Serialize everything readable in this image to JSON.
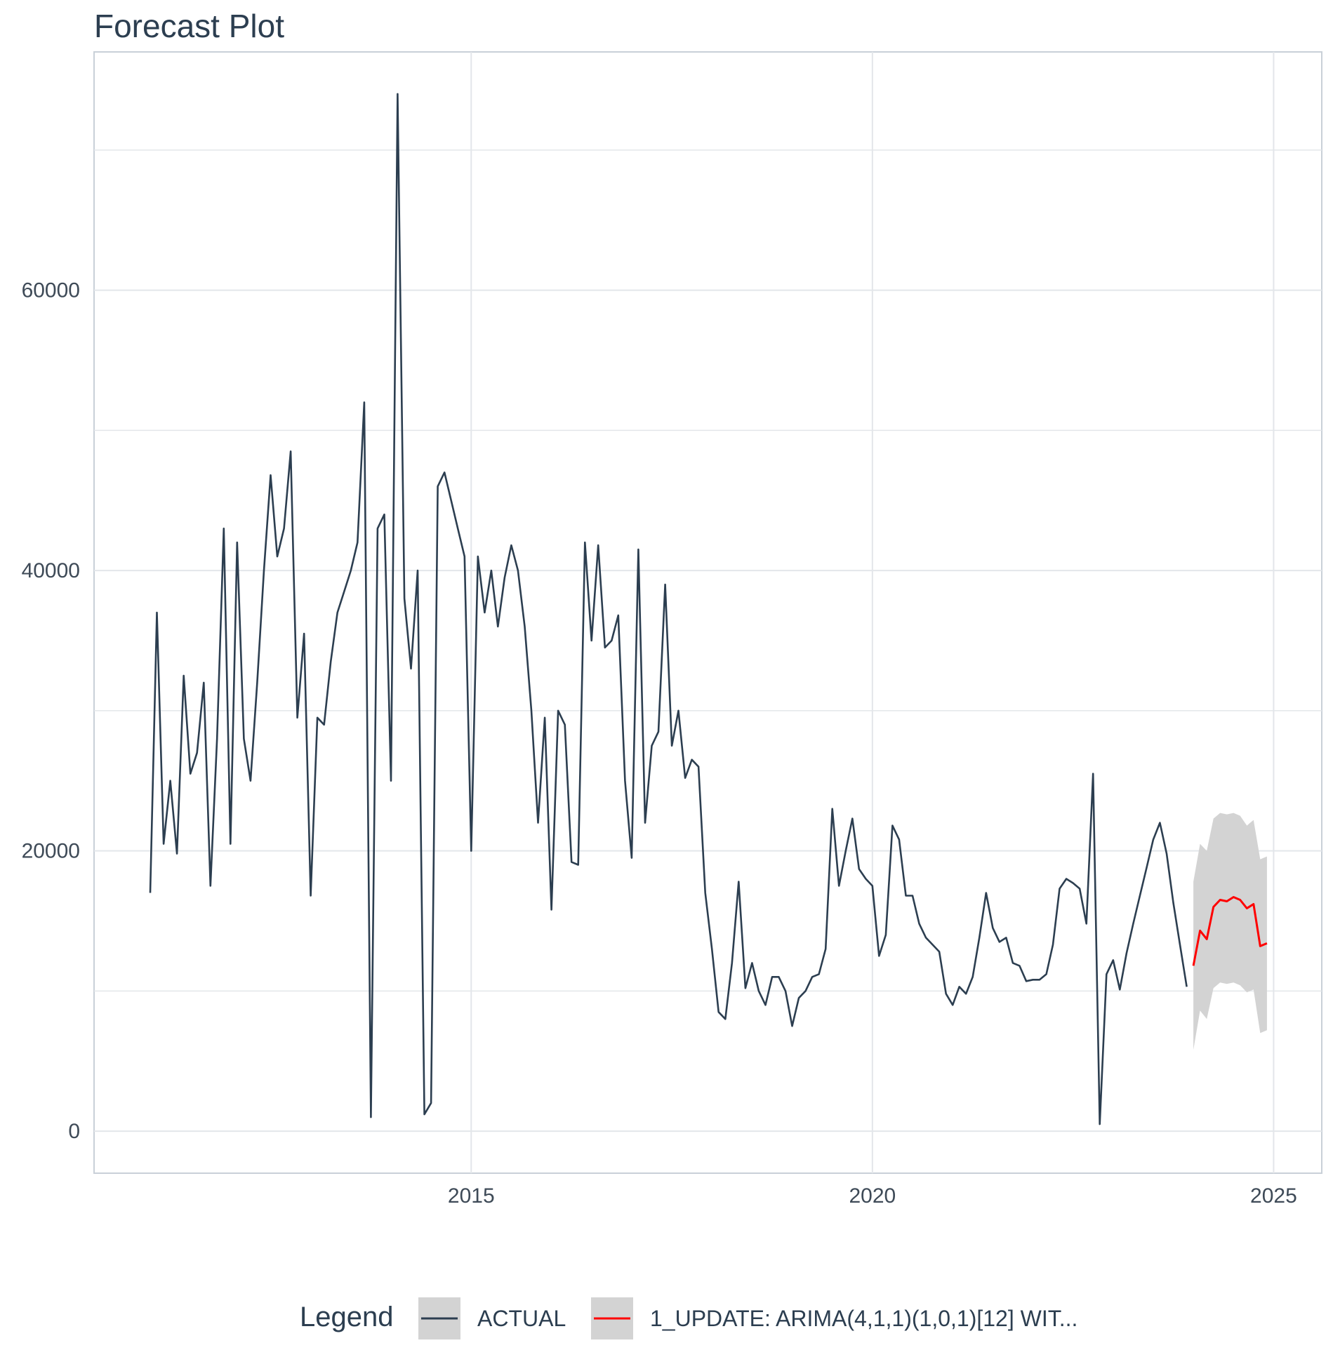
{
  "chart_data": {
    "type": "line",
    "title": "Forecast Plot",
    "xlabel": "",
    "ylabel": "",
    "x_ticks": [
      2015,
      2020,
      2025
    ],
    "y_ticks": [
      0,
      20000,
      40000,
      60000
    ],
    "y_tick_labels": [
      "0",
      "20000",
      "40000",
      "60000"
    ],
    "x_tick_labels": [
      "2015",
      "2020",
      "2025"
    ],
    "xlim": [
      2010.3,
      2025.6
    ],
    "ylim": [
      -3000,
      77000
    ],
    "grid": true,
    "legend_position": "bottom",
    "legend": {
      "title": "Legend",
      "entries": [
        {
          "label": "ACTUAL",
          "color": "#2c3e50"
        },
        {
          "label": "1_UPDATE: ARIMA(4,1,1)(1,0,1)[12] WIT...",
          "color": "#ff0000"
        }
      ]
    },
    "colors": {
      "actual": "#2c3e50",
      "forecast": "#ff0000",
      "interval": "#d3d3d3",
      "grid": "#e3e6ea",
      "panel_border": "#c9d0d8"
    },
    "series": [
      {
        "name": "ACTUAL",
        "points": [
          [
            2011.0,
            17000
          ],
          [
            2011.083,
            37000
          ],
          [
            2011.167,
            20500
          ],
          [
            2011.25,
            25000
          ],
          [
            2011.333,
            19800
          ],
          [
            2011.417,
            32500
          ],
          [
            2011.5,
            25500
          ],
          [
            2011.583,
            27000
          ],
          [
            2011.667,
            32000
          ],
          [
            2011.75,
            17500
          ],
          [
            2011.833,
            28000
          ],
          [
            2011.917,
            43000
          ],
          [
            2012.0,
            20500
          ],
          [
            2012.083,
            42000
          ],
          [
            2012.167,
            28000
          ],
          [
            2012.25,
            25000
          ],
          [
            2012.333,
            32000
          ],
          [
            2012.417,
            40000
          ],
          [
            2012.5,
            46800
          ],
          [
            2012.583,
            41000
          ],
          [
            2012.667,
            43000
          ],
          [
            2012.75,
            48500
          ],
          [
            2012.833,
            29500
          ],
          [
            2012.917,
            35500
          ],
          [
            2013.0,
            16800
          ],
          [
            2013.083,
            29500
          ],
          [
            2013.167,
            29000
          ],
          [
            2013.25,
            33500
          ],
          [
            2013.333,
            37000
          ],
          [
            2013.417,
            38500
          ],
          [
            2013.5,
            40000
          ],
          [
            2013.583,
            42000
          ],
          [
            2013.667,
            52000
          ],
          [
            2013.75,
            1000
          ],
          [
            2013.833,
            43000
          ],
          [
            2013.917,
            44000
          ],
          [
            2014.0,
            25000
          ],
          [
            2014.083,
            74000
          ],
          [
            2014.167,
            38000
          ],
          [
            2014.25,
            33000
          ],
          [
            2014.333,
            40000
          ],
          [
            2014.417,
            1200
          ],
          [
            2014.5,
            2000
          ],
          [
            2014.583,
            46000
          ],
          [
            2014.667,
            47000
          ],
          [
            2014.75,
            45000
          ],
          [
            2014.833,
            43000
          ],
          [
            2014.917,
            41000
          ],
          [
            2015.0,
            20000
          ],
          [
            2015.083,
            41000
          ],
          [
            2015.167,
            37000
          ],
          [
            2015.25,
            40000
          ],
          [
            2015.333,
            36000
          ],
          [
            2015.417,
            39500
          ],
          [
            2015.5,
            41800
          ],
          [
            2015.583,
            40000
          ],
          [
            2015.667,
            36000
          ],
          [
            2015.75,
            30000
          ],
          [
            2015.833,
            22000
          ],
          [
            2015.917,
            29500
          ],
          [
            2016.0,
            15800
          ],
          [
            2016.083,
            30000
          ],
          [
            2016.167,
            29000
          ],
          [
            2016.25,
            19200
          ],
          [
            2016.333,
            19000
          ],
          [
            2016.417,
            42000
          ],
          [
            2016.5,
            35000
          ],
          [
            2016.583,
            41800
          ],
          [
            2016.667,
            34500
          ],
          [
            2016.75,
            35000
          ],
          [
            2016.833,
            36800
          ],
          [
            2016.917,
            25000
          ],
          [
            2017.0,
            19500
          ],
          [
            2017.083,
            41500
          ],
          [
            2017.167,
            22000
          ],
          [
            2017.25,
            27500
          ],
          [
            2017.333,
            28500
          ],
          [
            2017.417,
            39000
          ],
          [
            2017.5,
            27500
          ],
          [
            2017.583,
            30000
          ],
          [
            2017.667,
            25200
          ],
          [
            2017.75,
            26500
          ],
          [
            2017.833,
            26000
          ],
          [
            2017.917,
            17000
          ],
          [
            2018.0,
            13000
          ],
          [
            2018.083,
            8500
          ],
          [
            2018.167,
            8000
          ],
          [
            2018.25,
            12000
          ],
          [
            2018.333,
            17800
          ],
          [
            2018.417,
            10200
          ],
          [
            2018.5,
            12000
          ],
          [
            2018.583,
            10000
          ],
          [
            2018.667,
            9000
          ],
          [
            2018.75,
            11000
          ],
          [
            2018.833,
            11000
          ],
          [
            2018.917,
            10000
          ],
          [
            2019.0,
            7500
          ],
          [
            2019.083,
            9500
          ],
          [
            2019.167,
            10000
          ],
          [
            2019.25,
            11000
          ],
          [
            2019.333,
            11200
          ],
          [
            2019.417,
            13000
          ],
          [
            2019.5,
            23000
          ],
          [
            2019.583,
            17500
          ],
          [
            2019.667,
            20000
          ],
          [
            2019.75,
            22300
          ],
          [
            2019.833,
            18700
          ],
          [
            2019.917,
            18000
          ],
          [
            2020.0,
            17500
          ],
          [
            2020.083,
            12500
          ],
          [
            2020.167,
            14000
          ],
          [
            2020.25,
            21800
          ],
          [
            2020.333,
            20800
          ],
          [
            2020.417,
            16800
          ],
          [
            2020.5,
            16800
          ],
          [
            2020.583,
            14800
          ],
          [
            2020.667,
            13800
          ],
          [
            2020.75,
            13300
          ],
          [
            2020.833,
            12800
          ],
          [
            2020.917,
            9800
          ],
          [
            2021.0,
            9000
          ],
          [
            2021.083,
            10300
          ],
          [
            2021.167,
            9800
          ],
          [
            2021.25,
            11000
          ],
          [
            2021.333,
            13800
          ],
          [
            2021.417,
            17000
          ],
          [
            2021.5,
            14500
          ],
          [
            2021.583,
            13500
          ],
          [
            2021.667,
            13800
          ],
          [
            2021.75,
            12000
          ],
          [
            2021.833,
            11800
          ],
          [
            2021.917,
            10700
          ],
          [
            2022.0,
            10800
          ],
          [
            2022.083,
            10800
          ],
          [
            2022.167,
            11200
          ],
          [
            2022.25,
            13300
          ],
          [
            2022.333,
            17300
          ],
          [
            2022.417,
            18000
          ],
          [
            2022.5,
            17700
          ],
          [
            2022.583,
            17300
          ],
          [
            2022.667,
            14800
          ],
          [
            2022.75,
            25500
          ],
          [
            2022.833,
            500
          ],
          [
            2022.917,
            11200
          ],
          [
            2023.0,
            12200
          ],
          [
            2023.083,
            10100
          ],
          [
            2023.167,
            12700
          ],
          [
            2023.25,
            14800
          ],
          [
            2023.333,
            16800
          ],
          [
            2023.417,
            18800
          ],
          [
            2023.5,
            20800
          ],
          [
            2023.583,
            22000
          ],
          [
            2023.667,
            19800
          ],
          [
            2023.75,
            16300
          ],
          [
            2023.833,
            13300
          ],
          [
            2023.917,
            10300
          ]
        ]
      },
      {
        "name": "1_UPDATE: ARIMA(4,1,1)(1,0,1)[12] WIT...",
        "points": [
          [
            2024.0,
            11800
          ],
          [
            2024.083,
            14300
          ],
          [
            2024.167,
            13700
          ],
          [
            2024.25,
            16000
          ],
          [
            2024.333,
            16500
          ],
          [
            2024.417,
            16400
          ],
          [
            2024.5,
            16700
          ],
          [
            2024.583,
            16500
          ],
          [
            2024.667,
            15900
          ],
          [
            2024.75,
            16200
          ],
          [
            2024.833,
            13200
          ],
          [
            2024.917,
            13400
          ]
        ],
        "interval_upper": [
          17800,
          20500,
          20000,
          22300,
          22700,
          22600,
          22700,
          22500,
          21800,
          22200,
          19400,
          19600
        ],
        "interval_lower": [
          5800,
          8600,
          8000,
          10200,
          10600,
          10500,
          10600,
          10400,
          9900,
          10100,
          7000,
          7200
        ]
      }
    ]
  }
}
